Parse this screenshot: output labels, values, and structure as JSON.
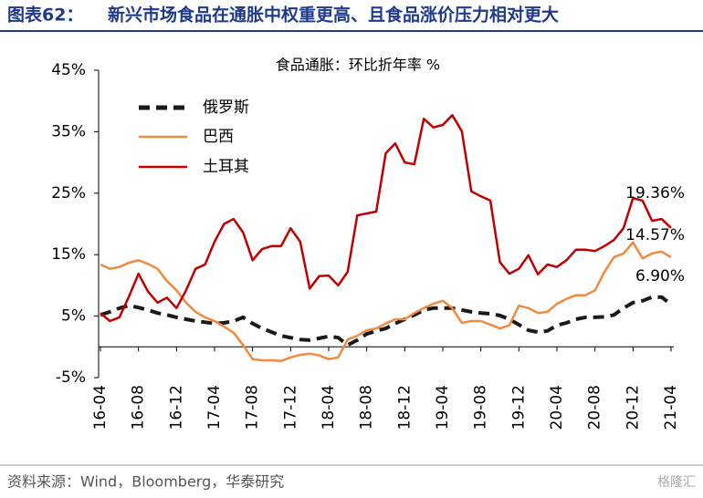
{
  "chart_data": {
    "type": "line",
    "figure_label": "图表62：",
    "title": "新兴市场食品在通胀中权重更高、且食品涨价压力相对更大",
    "subtitle": "食品通胀：环比折年率 %",
    "source": "资料来源：Wind，Bloomberg，华泰研究",
    "watermark": "格隆汇",
    "categories": [
      "16-04",
      null,
      null,
      null,
      "16-08",
      null,
      null,
      null,
      "16-12",
      null,
      null,
      null,
      "17-04",
      null,
      null,
      null,
      "17-08",
      null,
      null,
      null,
      "17-12",
      null,
      null,
      null,
      "18-04",
      null,
      null,
      null,
      "18-08",
      null,
      null,
      null,
      "18-12",
      null,
      null,
      null,
      "19-04",
      null,
      null,
      null,
      "19-08",
      null,
      null,
      null,
      "19-12",
      null,
      null,
      null,
      "20-04",
      null,
      null,
      null,
      "20-08",
      null,
      null,
      null,
      "20-12",
      null,
      null,
      null,
      "21-04"
    ],
    "series": [
      {
        "name": "俄罗斯",
        "color": "#1a1a1a",
        "dashed": true,
        "values": [
          5.2,
          5.7,
          6.3,
          6.7,
          6.4,
          6,
          5.5,
          5.2,
          4.8,
          4.5,
          4.2,
          4,
          3.8,
          3.9,
          4.2,
          4.8,
          3.8,
          3,
          2.4,
          1.8,
          1.5,
          1.2,
          1.1,
          1.4,
          1.7,
          1.5,
          0.3,
          1.1,
          2.1,
          2.6,
          3,
          3.8,
          4.5,
          5.2,
          6,
          6.3,
          6.3,
          6.3,
          6,
          5.7,
          5.5,
          5.4,
          5.1,
          4.5,
          3.6,
          2.7,
          2.4,
          2.6,
          3.5,
          3.9,
          4.5,
          4.8,
          4.8,
          4.9,
          5.2,
          6.3,
          7.2,
          7.5,
          8.1,
          8.1,
          6.9
        ],
        "value_labels": [
          null,
          null,
          null,
          null,
          null,
          null,
          null,
          null,
          null,
          null,
          null,
          null,
          null,
          null,
          null,
          null,
          null,
          null,
          null,
          null,
          null,
          null,
          null,
          null,
          null,
          null,
          null,
          null,
          null,
          null,
          null,
          null,
          null,
          null,
          null,
          null,
          null,
          null,
          null,
          null,
          null,
          null,
          null,
          null,
          null,
          null,
          null,
          null,
          null,
          null,
          null,
          null,
          null,
          null,
          null,
          null,
          null,
          null,
          null,
          null,
          "6.90%"
        ]
      },
      {
        "name": "巴西",
        "color": "#f08a3e",
        "dashed": false,
        "values": [
          13.4,
          12.7,
          13,
          13.7,
          14.1,
          13.5,
          12.7,
          10.7,
          9.2,
          7.2,
          5.7,
          4.8,
          4.2,
          3.3,
          2.3,
          0.3,
          -2,
          -2.2,
          -2.2,
          -2.3,
          -1.7,
          -1.3,
          -1.1,
          -1.4,
          -2,
          -1.7,
          1.2,
          1.8,
          2.7,
          3,
          3.8,
          4.5,
          4.5,
          5.5,
          6.3,
          7,
          7.5,
          6.3,
          3.9,
          4.2,
          4.2,
          3.6,
          3,
          3.5,
          6.7,
          6.3,
          5.5,
          5.7,
          7,
          7.8,
          8.4,
          8.4,
          9.2,
          12.2,
          14.6,
          15.2,
          17,
          14.4,
          15.2,
          15.5,
          14.57
        ],
        "value_labels": [
          null,
          null,
          null,
          null,
          null,
          null,
          null,
          null,
          null,
          null,
          null,
          null,
          null,
          null,
          null,
          null,
          null,
          null,
          null,
          null,
          null,
          null,
          null,
          null,
          null,
          null,
          null,
          null,
          null,
          null,
          null,
          null,
          null,
          null,
          null,
          null,
          null,
          null,
          null,
          null,
          null,
          null,
          null,
          null,
          null,
          null,
          null,
          null,
          null,
          null,
          null,
          null,
          null,
          null,
          null,
          null,
          null,
          null,
          null,
          null,
          "14.57%"
        ]
      },
      {
        "name": "土耳其",
        "color": "#c00000",
        "dashed": false,
        "values": [
          5.5,
          4.2,
          4.8,
          8.2,
          11.9,
          9,
          7.2,
          8,
          6.3,
          9.2,
          12.7,
          13.4,
          17.1,
          20,
          20.8,
          18.6,
          14.1,
          15.9,
          16.4,
          16.4,
          19.3,
          17.1,
          9.5,
          11.5,
          11.6,
          10,
          12.2,
          21.4,
          21.7,
          22,
          31.5,
          33.1,
          30,
          29.7,
          37.1,
          35.7,
          36.1,
          37.7,
          35.1,
          25.3,
          24.5,
          23.8,
          13.8,
          11.9,
          12.7,
          14.9,
          11.8,
          13.4,
          13,
          14.1,
          15.8,
          15.8,
          15.6,
          16.4,
          17.4,
          19.3,
          24.2,
          23.8,
          20.5,
          20.8,
          19.36
        ],
        "value_labels": [
          null,
          null,
          null,
          null,
          null,
          null,
          null,
          null,
          null,
          null,
          null,
          null,
          null,
          null,
          null,
          null,
          null,
          null,
          null,
          null,
          null,
          null,
          null,
          null,
          null,
          null,
          null,
          null,
          null,
          null,
          null,
          null,
          null,
          null,
          null,
          null,
          null,
          null,
          null,
          null,
          null,
          null,
          null,
          null,
          null,
          null,
          null,
          null,
          null,
          null,
          null,
          null,
          null,
          null,
          null,
          null,
          null,
          null,
          null,
          null,
          "19.36%"
        ]
      }
    ],
    "ylim": [
      -5,
      45
    ],
    "yticks": [
      {
        "value": -5,
        "label": "-5%"
      },
      {
        "value": 5,
        "label": "5%"
      },
      {
        "value": 15,
        "label": "15%"
      },
      {
        "value": 25,
        "label": "25%"
      },
      {
        "value": 35,
        "label": "35%"
      },
      {
        "value": 45,
        "label": "45%"
      }
    ],
    "grid": false,
    "legend": "upper-left"
  }
}
